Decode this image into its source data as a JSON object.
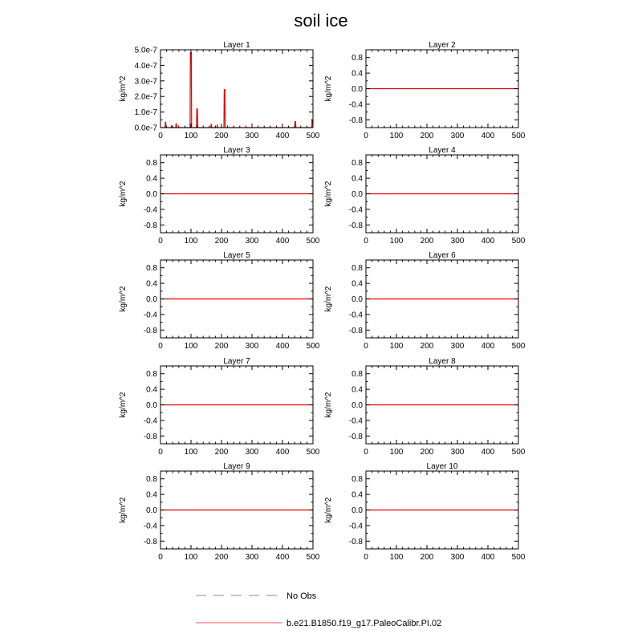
{
  "title": "soil ice",
  "colors": {
    "model": "#e00000",
    "obs": "#9a9ad8"
  },
  "legend": [
    {
      "label": "No Obs",
      "style": "dashed",
      "color": "#9a9ad8"
    },
    {
      "label": "b.e21.B1850.f19_g17.PaleoCalibr.PI.02",
      "style": "solid",
      "color": "#f08080"
    }
  ],
  "chart_data": [
    {
      "type": "line",
      "title": "Layer 1",
      "ylabel": "kg/m^2",
      "xlim": [
        0,
        500
      ],
      "ylim": [
        0,
        5e-07
      ],
      "xticks": [
        "0",
        "100",
        "200",
        "300",
        "400",
        "500"
      ],
      "yticks": [
        {
          "v": 0,
          "label": "0.0e-7"
        },
        {
          "v": 1e-07,
          "label": "1.0e-7"
        },
        {
          "v": 2e-07,
          "label": "2.0e-7"
        },
        {
          "v": 3e-07,
          "label": "3.0e-7"
        },
        {
          "v": 4e-07,
          "label": "4.0e-7"
        },
        {
          "v": 5e-07,
          "label": "5.0e-7"
        }
      ],
      "series": [
        {
          "x": [
            0,
            15,
            16,
            17,
            18,
            35,
            36,
            37,
            50,
            51,
            52,
            53,
            97,
            98,
            99,
            100,
            101,
            102,
            118,
            119,
            120,
            121,
            122,
            165,
            166,
            167,
            168,
            185,
            186,
            187,
            208,
            209,
            210,
            211,
            212,
            430,
            440,
            441,
            442,
            443,
            444,
            496,
            497,
            498,
            499,
            500
          ],
          "y": [
            0,
            0,
            3.5e-08,
            3.5e-08,
            0,
            0,
            1.5e-08,
            0,
            0,
            2.5e-08,
            2.5e-08,
            0,
            0,
            4.8e-07,
            4.8e-07,
            4.8e-07,
            4.8e-07,
            0,
            0,
            1.2e-07,
            1.2e-07,
            1.2e-07,
            0,
            0,
            2e-08,
            2e-08,
            0,
            0,
            2e-08,
            0,
            0,
            2.45e-07,
            2.45e-07,
            2.45e-07,
            0,
            0,
            0,
            3.8e-08,
            3.8e-08,
            3.8e-08,
            0,
            0,
            4.8e-08,
            4.8e-08,
            4.8e-08,
            0
          ]
        }
      ]
    },
    {
      "type": "line",
      "title": "Layer 2",
      "ylabel": "kg/m^2",
      "xlim": [
        0,
        500
      ],
      "ylim": [
        -1,
        1
      ],
      "xticks": [
        "0",
        "100",
        "200",
        "300",
        "400",
        "500"
      ],
      "yticks": [
        {
          "v": 0.8,
          "label": "0.8"
        },
        {
          "v": 0.4,
          "label": "0.4"
        },
        {
          "v": 0,
          "label": "0.0"
        },
        {
          "v": -0.4,
          "label": "-0.4"
        },
        {
          "v": -0.8,
          "label": "-0.8"
        }
      ],
      "series": [
        {
          "x": [
            0,
            500
          ],
          "y": [
            0,
            0
          ]
        }
      ]
    },
    {
      "type": "line",
      "title": "Layer 3",
      "ylabel": "kg/m^2",
      "xlim": [
        0,
        500
      ],
      "ylim": [
        -1,
        1
      ],
      "xticks": [
        "0",
        "100",
        "200",
        "300",
        "400",
        "500"
      ],
      "yticks": [
        {
          "v": 0.8,
          "label": "0.8"
        },
        {
          "v": 0.4,
          "label": "0.4"
        },
        {
          "v": 0,
          "label": "0.0"
        },
        {
          "v": -0.4,
          "label": "-0.4"
        },
        {
          "v": -0.8,
          "label": "-0.8"
        }
      ],
      "series": [
        {
          "x": [
            0,
            500
          ],
          "y": [
            0,
            0
          ]
        }
      ]
    },
    {
      "type": "line",
      "title": "Layer 4",
      "ylabel": "kg/m^2",
      "xlim": [
        0,
        500
      ],
      "ylim": [
        -1,
        1
      ],
      "xticks": [
        "0",
        "100",
        "200",
        "300",
        "400",
        "500"
      ],
      "yticks": [
        {
          "v": 0.8,
          "label": "0.8"
        },
        {
          "v": 0.4,
          "label": "0.4"
        },
        {
          "v": 0,
          "label": "0.0"
        },
        {
          "v": -0.4,
          "label": "-0.4"
        },
        {
          "v": -0.8,
          "label": "-0.8"
        }
      ],
      "series": [
        {
          "x": [
            0,
            500
          ],
          "y": [
            0,
            0
          ]
        }
      ]
    },
    {
      "type": "line",
      "title": "Layer 5",
      "ylabel": "kg/m^2",
      "xlim": [
        0,
        500
      ],
      "ylim": [
        -1,
        1
      ],
      "xticks": [
        "0",
        "100",
        "200",
        "300",
        "400",
        "500"
      ],
      "yticks": [
        {
          "v": 0.8,
          "label": "0.8"
        },
        {
          "v": 0.4,
          "label": "0.4"
        },
        {
          "v": 0,
          "label": "0.0"
        },
        {
          "v": -0.4,
          "label": "-0.4"
        },
        {
          "v": -0.8,
          "label": "-0.8"
        }
      ],
      "series": [
        {
          "x": [
            0,
            500
          ],
          "y": [
            0,
            0
          ]
        }
      ]
    },
    {
      "type": "line",
      "title": "Layer 6",
      "ylabel": "kg/m^2",
      "xlim": [
        0,
        500
      ],
      "ylim": [
        -1,
        1
      ],
      "xticks": [
        "0",
        "100",
        "200",
        "300",
        "400",
        "500"
      ],
      "yticks": [
        {
          "v": 0.8,
          "label": "0.8"
        },
        {
          "v": 0.4,
          "label": "0.4"
        },
        {
          "v": 0,
          "label": "0.0"
        },
        {
          "v": -0.4,
          "label": "-0.4"
        },
        {
          "v": -0.8,
          "label": "-0.8"
        }
      ],
      "series": [
        {
          "x": [
            0,
            500
          ],
          "y": [
            0,
            0
          ]
        }
      ]
    },
    {
      "type": "line",
      "title": "Layer 7",
      "ylabel": "kg/m^2",
      "xlim": [
        0,
        500
      ],
      "ylim": [
        -1,
        1
      ],
      "xticks": [
        "0",
        "100",
        "200",
        "300",
        "400",
        "500"
      ],
      "yticks": [
        {
          "v": 0.8,
          "label": "0.8"
        },
        {
          "v": 0.4,
          "label": "0.4"
        },
        {
          "v": 0,
          "label": "0.0"
        },
        {
          "v": -0.4,
          "label": "-0.4"
        },
        {
          "v": -0.8,
          "label": "-0.8"
        }
      ],
      "series": [
        {
          "x": [
            0,
            500
          ],
          "y": [
            0,
            0
          ]
        }
      ]
    },
    {
      "type": "line",
      "title": "Layer 8",
      "ylabel": "kg/m^2",
      "xlim": [
        0,
        500
      ],
      "ylim": [
        -1,
        1
      ],
      "xticks": [
        "0",
        "100",
        "200",
        "300",
        "400",
        "500"
      ],
      "yticks": [
        {
          "v": 0.8,
          "label": "0.8"
        },
        {
          "v": 0.4,
          "label": "0.4"
        },
        {
          "v": 0,
          "label": "0.0"
        },
        {
          "v": -0.4,
          "label": "-0.4"
        },
        {
          "v": -0.8,
          "label": "-0.8"
        }
      ],
      "series": [
        {
          "x": [
            0,
            500
          ],
          "y": [
            0,
            0
          ]
        }
      ]
    },
    {
      "type": "line",
      "title": "Layer 9",
      "ylabel": "kg/m^2",
      "xlim": [
        0,
        500
      ],
      "ylim": [
        -1,
        1
      ],
      "xticks": [
        "0",
        "100",
        "200",
        "300",
        "400",
        "500"
      ],
      "yticks": [
        {
          "v": 0.8,
          "label": "0.8"
        },
        {
          "v": 0.4,
          "label": "0.4"
        },
        {
          "v": 0,
          "label": "0.0"
        },
        {
          "v": -0.4,
          "label": "-0.4"
        },
        {
          "v": -0.8,
          "label": "-0.8"
        }
      ],
      "series": [
        {
          "x": [
            0,
            500
          ],
          "y": [
            0,
            0
          ]
        }
      ]
    },
    {
      "type": "line",
      "title": "Layer 10",
      "ylabel": "kg/m^2",
      "xlim": [
        0,
        500
      ],
      "ylim": [
        -1,
        1
      ],
      "xticks": [
        "0",
        "100",
        "200",
        "300",
        "400",
        "500"
      ],
      "yticks": [
        {
          "v": 0.8,
          "label": "0.8"
        },
        {
          "v": 0.4,
          "label": "0.4"
        },
        {
          "v": 0,
          "label": "0.0"
        },
        {
          "v": -0.4,
          "label": "-0.4"
        },
        {
          "v": -0.8,
          "label": "-0.8"
        }
      ],
      "series": [
        {
          "x": [
            0,
            500
          ],
          "y": [
            0,
            0
          ]
        }
      ]
    }
  ]
}
